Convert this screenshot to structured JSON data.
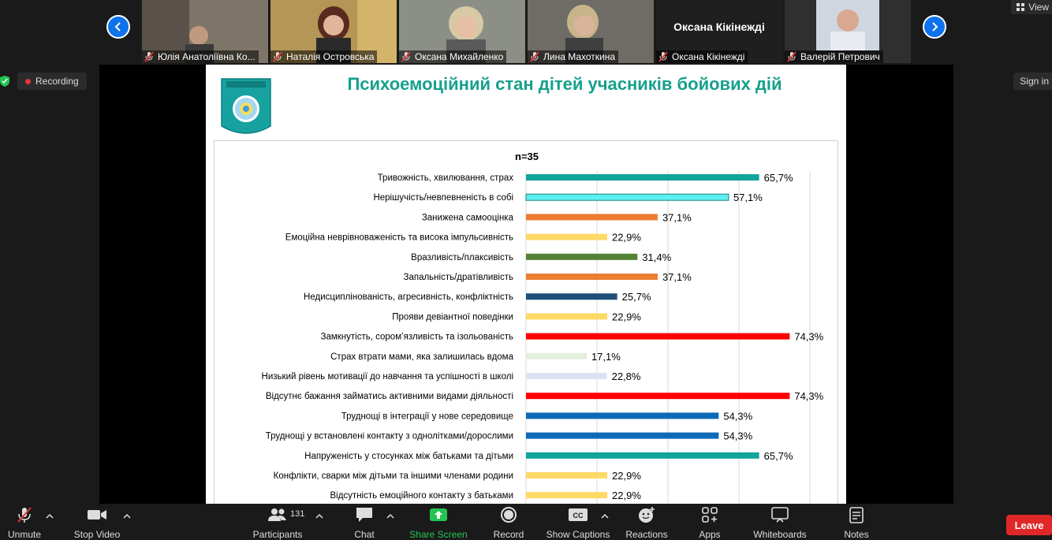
{
  "gallery": {
    "view_label": "View",
    "tiles": [
      {
        "name": "Юлія Анатоліївна Ко...",
        "bg": "#7d7567"
      },
      {
        "name": "Наталія Островська",
        "bg": "#b49656"
      },
      {
        "name": "Оксана Михайленко",
        "bg": "#8c8f86"
      },
      {
        "name": "Лина Махоткина",
        "bg": "#6f6c65"
      },
      {
        "name": "Оксана Кікінежді",
        "bg": "#1f1f1f",
        "big_name": "Оксана Кікінежді"
      },
      {
        "name": "Валерій Петрович",
        "bg": "#2f2f2f"
      }
    ]
  },
  "status": {
    "recording_label": "Recording",
    "sign_in_label": "Sign in"
  },
  "slide": {
    "title": "Психоемоційний стан дітей учасників бойових дій",
    "accent": "#16a08c"
  },
  "chart_data": {
    "type": "bar",
    "orientation": "horizontal",
    "title": "n=35",
    "xlim": [
      0,
      80
    ],
    "grid": true,
    "categories": [
      "Тривожність, хвилювання, страх",
      "Нерішучість/невпевненість в собі",
      "Занижена самооцінка",
      "Емоційна неврівноваженість та висока імпульсивність",
      "Вразливість/плаксивість",
      "Запальність/дратівливість",
      "Недисциплінованість, агресивність, конфліктність",
      "Прояви девіантної поведінки",
      "Замкнутість, сором’язливість та ізольованість",
      "Страх втрати мами, яка залишилась вдома",
      "Низький рівень мотивації до навчання та успішності в школі",
      "Відсутнє бажання займатись активними видами діяльності",
      "Труднощі в інтеграції у нове середовище",
      "Труднощі у встановлені контакту з однолітками/дорослими",
      "Напруженість у стосунках між батьками та дітьми",
      "Конфлікти, сварки між дітьми та іншими членами родини",
      "Відсутність емоційного контакту з батьками"
    ],
    "values": [
      65.7,
      57.1,
      37.1,
      22.9,
      31.4,
      37.1,
      25.7,
      22.9,
      74.3,
      17.1,
      22.8,
      74.3,
      54.3,
      54.3,
      65.7,
      22.9,
      22.9
    ],
    "value_labels": [
      "65,7%",
      "57,1%",
      "37,1%",
      "22,9%",
      "31,4%",
      "37,1%",
      "25,7%",
      "22,9%",
      "74,3%",
      "17,1%",
      "22,8%",
      "74,3%",
      "54,3%",
      "54,3%",
      "65,7%",
      "22,9%",
      "22,9%"
    ],
    "colors": [
      "#12a39a",
      "#5cf0f0",
      "#ed7d31",
      "#ffd966",
      "#548235",
      "#ed7d31",
      "#1f4e79",
      "#ffd966",
      "#ff0000",
      "#e2efda",
      "#dae3f3",
      "#ff0000",
      "#0d6ab8",
      "#0d6ab8",
      "#12a39a",
      "#ffd966",
      "#ffd966"
    ]
  },
  "toolbar": {
    "unmute": "Unmute",
    "stop_video": "Stop Video",
    "participants": "Participants",
    "participants_count": "131",
    "chat": "Chat",
    "share_screen": "Share Screen",
    "record": "Record",
    "show_captions": "Show Captions",
    "reactions": "Reactions",
    "apps": "Apps",
    "whiteboards": "Whiteboards",
    "notes": "Notes",
    "leave": "Leave"
  }
}
